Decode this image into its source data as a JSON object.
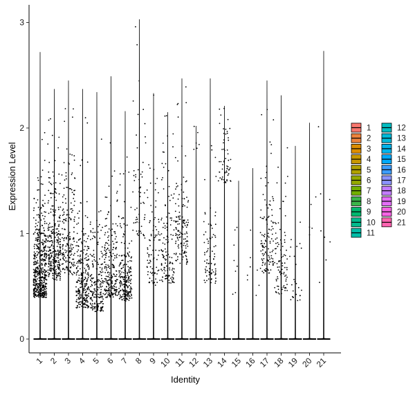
{
  "chart_data": {
    "type": "violin",
    "xlabel": "Identity",
    "ylabel": "Expression Level",
    "ylim": [
      -0.15,
      3.05
    ],
    "yticks": [
      0,
      1,
      2,
      3
    ],
    "grid": false,
    "legend_placement": "right",
    "categories": [
      "1",
      "2",
      "3",
      "4",
      "5",
      "6",
      "7",
      "8",
      "9",
      "10",
      "11",
      "12",
      "13",
      "14",
      "15",
      "16",
      "17",
      "18",
      "19",
      "20",
      "21"
    ],
    "series": [
      {
        "name": "1",
        "color": "#F8766D",
        "max": 2.72,
        "n_expr": 520,
        "center": 0.55,
        "spread": 0.45
      },
      {
        "name": "2",
        "color": "#EC823C",
        "max": 2.37,
        "n_expr": 300,
        "center": 0.75,
        "spread": 0.55
      },
      {
        "name": "3",
        "color": "#DC8D00",
        "max": 2.45,
        "n_expr": 180,
        "center": 0.8,
        "spread": 0.55
      },
      {
        "name": "4",
        "color": "#C89800",
        "max": 2.37,
        "n_expr": 260,
        "center": 0.45,
        "spread": 0.45
      },
      {
        "name": "5",
        "color": "#B0A100",
        "max": 2.34,
        "n_expr": 200,
        "center": 0.4,
        "spread": 0.4
      },
      {
        "name": "6",
        "color": "#94A900",
        "max": 2.49,
        "n_expr": 220,
        "center": 0.55,
        "spread": 0.45
      },
      {
        "name": "7",
        "color": "#72B000",
        "max": 2.16,
        "n_expr": 220,
        "center": 0.5,
        "spread": 0.4
      },
      {
        "name": "8",
        "color": "#3AB54A",
        "max": 3.03,
        "n_expr": 60,
        "center": 1.2,
        "spread": 0.7
      },
      {
        "name": "9",
        "color": "#00B86F",
        "max": 2.33,
        "n_expr": 90,
        "center": 0.7,
        "spread": 0.55
      },
      {
        "name": "10",
        "color": "#00BB8E",
        "max": 2.15,
        "n_expr": 130,
        "center": 0.7,
        "spread": 0.5
      },
      {
        "name": "11",
        "color": "#00BDA8",
        "max": 2.47,
        "n_expr": 140,
        "center": 0.9,
        "spread": 0.55
      },
      {
        "name": "12",
        "color": "#00BCC1",
        "max": 2.02,
        "n_expr": 6,
        "center": 1.8,
        "spread": 0.2
      },
      {
        "name": "13",
        "color": "#00B9D7",
        "max": 2.47,
        "n_expr": 80,
        "center": 0.7,
        "spread": 0.5
      },
      {
        "name": "14",
        "color": "#00B3EA",
        "max": 2.21,
        "n_expr": 60,
        "center": 1.6,
        "spread": 0.35
      },
      {
        "name": "15",
        "color": "#00A9FA",
        "max": 1.5,
        "n_expr": 8,
        "center": 0.5,
        "spread": 0.3
      },
      {
        "name": "16",
        "color": "#3C9DFF",
        "max": 1.62,
        "n_expr": 8,
        "center": 0.5,
        "spread": 0.4
      },
      {
        "name": "17",
        "color": "#8B93FF",
        "max": 2.45,
        "n_expr": 120,
        "center": 0.8,
        "spread": 0.5
      },
      {
        "name": "18",
        "color": "#C37CFF",
        "max": 2.31,
        "n_expr": 90,
        "center": 0.6,
        "spread": 0.5
      },
      {
        "name": "19",
        "color": "#E36EF6",
        "max": 1.83,
        "n_expr": 25,
        "center": 0.5,
        "spread": 0.4
      },
      {
        "name": "20",
        "color": "#F564E3",
        "max": 2.05,
        "n_expr": 5,
        "center": 1.1,
        "spread": 0.4
      },
      {
        "name": "21",
        "color": "#FF64B0",
        "max": 2.73,
        "n_expr": 8,
        "center": 0.8,
        "spread": 0.8
      }
    ]
  }
}
